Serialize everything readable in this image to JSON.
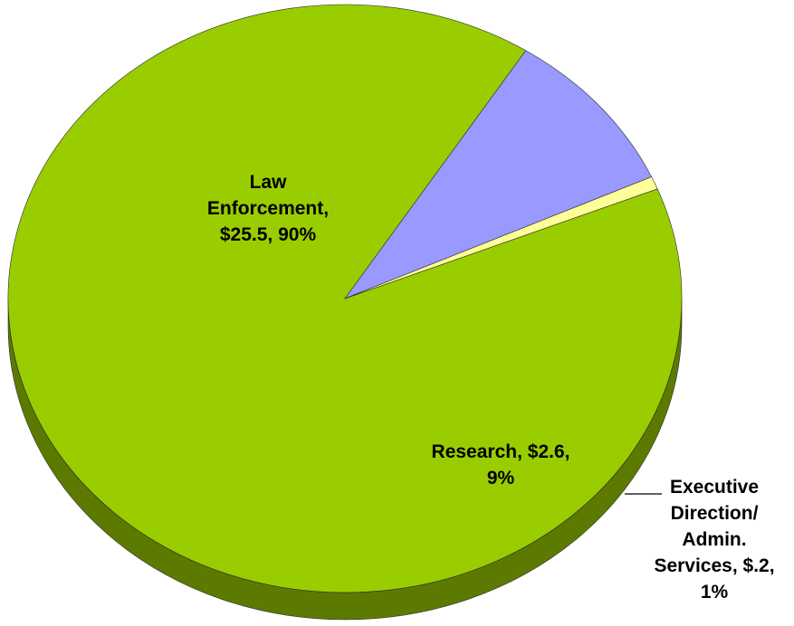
{
  "chart_data": {
    "type": "pie",
    "title": "",
    "slices": [
      {
        "name": "Law Enforcement",
        "value": 25.5,
        "percent": 90,
        "label_lines": [
          "Law",
          "Enforcement,",
          "$25.5, 90%"
        ],
        "color": "#9ACD00",
        "side_color": "#5C7A00"
      },
      {
        "name": "Research",
        "value": 2.6,
        "percent": 9,
        "label_lines": [
          "Research, $2.6,",
          "9%"
        ],
        "color": "#9999FF",
        "side_color": "#3F3F7A"
      },
      {
        "name": "Executive Direction/ Admin. Services",
        "value": 0.2,
        "percent": 1,
        "label_lines": [
          "Executive",
          "Direction/",
          "Admin.",
          "Services, $.2,",
          "1%"
        ],
        "color": "#FFFF99",
        "side_color": "#8C8C3A"
      }
    ]
  }
}
